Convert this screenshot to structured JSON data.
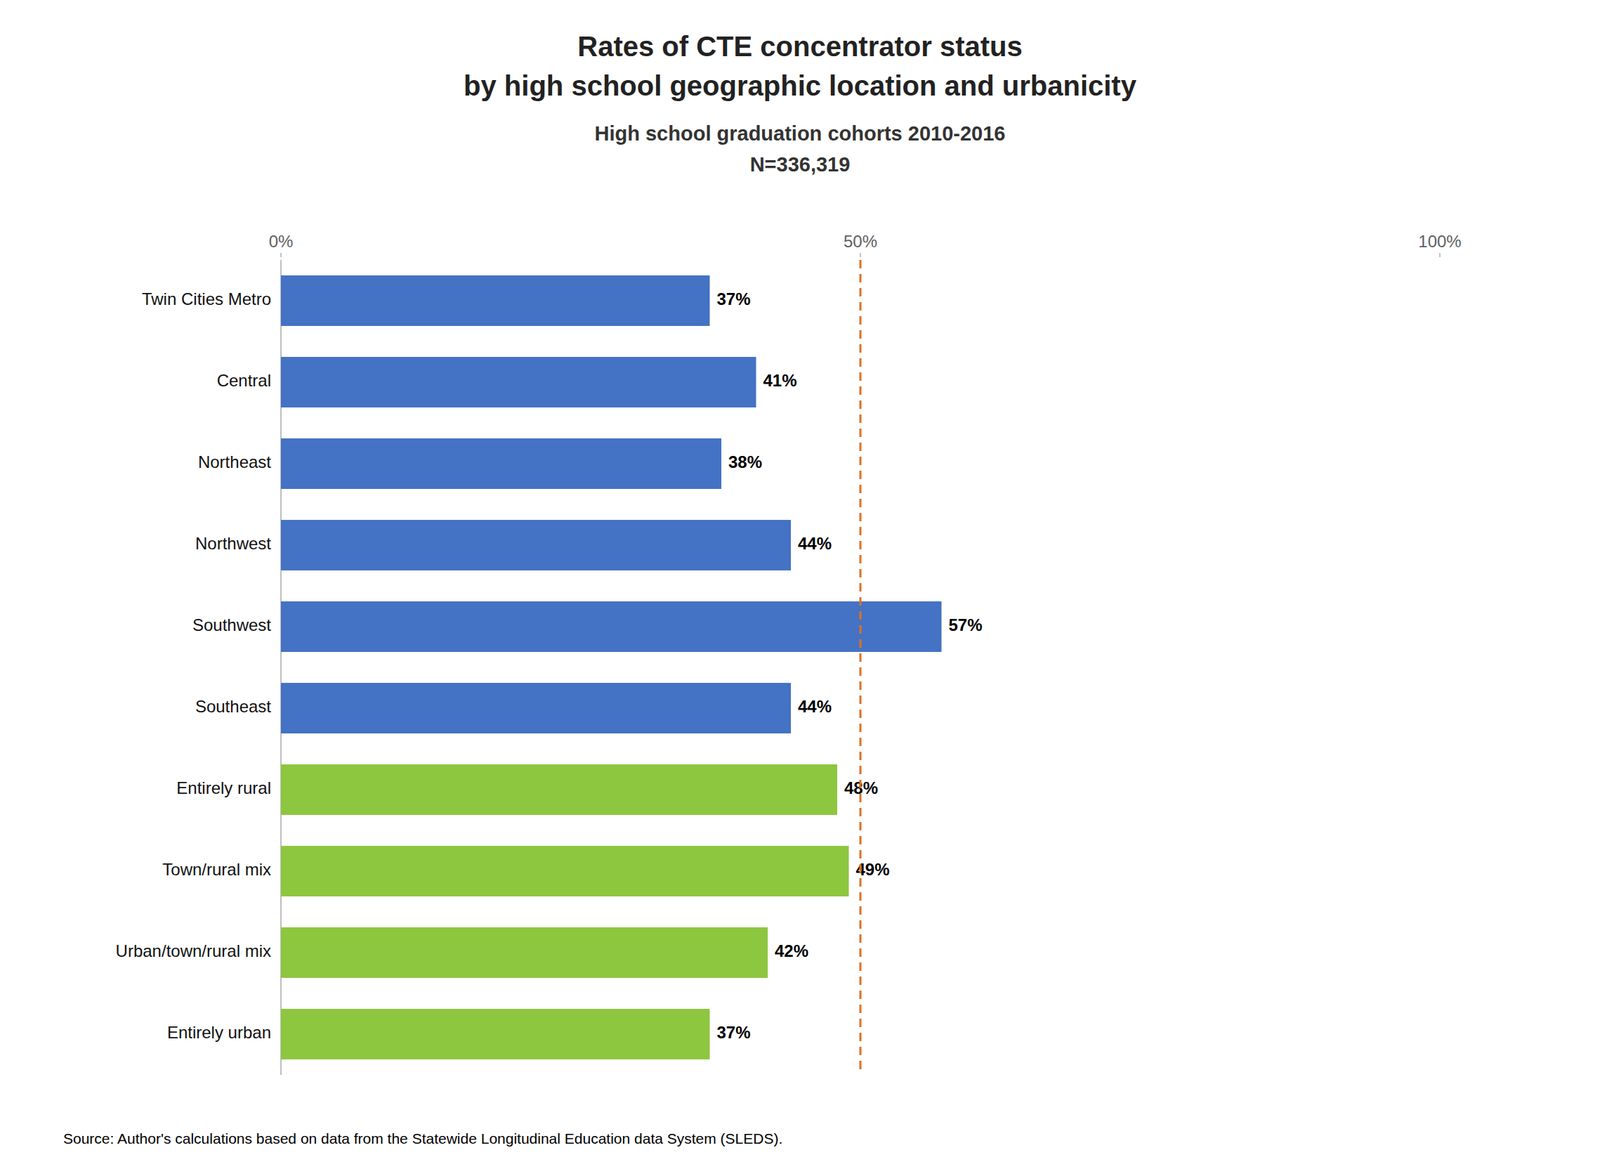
{
  "chart_data": {
    "type": "bar",
    "orientation": "horizontal",
    "title": [
      "Rates of CTE concentrator status",
      "by high school geographic location and urbanicity"
    ],
    "subtitle": [
      "High school graduation cohorts 2010-2016",
      "N=336,319"
    ],
    "source": "Source: Author's calculations based on data from the Statewide Longitudinal Education data System (SLEDS).",
    "categories": [
      "Twin Cities Metro",
      "Central",
      "Northeast",
      "Northwest",
      "Southwest",
      "Southeast",
      "Entirely rural",
      "Town/rural mix",
      "Urban/town/rural mix",
      "Entirely urban"
    ],
    "values": [
      37,
      41,
      38,
      44,
      57,
      44,
      48,
      49,
      42,
      37
    ],
    "value_labels": [
      "37%",
      "41%",
      "38%",
      "44%",
      "57%",
      "44%",
      "48%",
      "49%",
      "42%",
      "37%"
    ],
    "colors": [
      "#4472C4",
      "#4472C4",
      "#4472C4",
      "#4472C4",
      "#4472C4",
      "#4472C4",
      "#8DC63F",
      "#8DC63F",
      "#8DC63F",
      "#8DC63F"
    ],
    "data_labels": true,
    "xlim": [
      0,
      100
    ],
    "xticks": [
      {
        "value": 0,
        "label": "0%"
      },
      {
        "value": 50,
        "label": "50%"
      },
      {
        "value": 100,
        "label": "100%"
      }
    ],
    "grid": false,
    "reference_line": {
      "value": 50,
      "color": "#E07020"
    }
  }
}
